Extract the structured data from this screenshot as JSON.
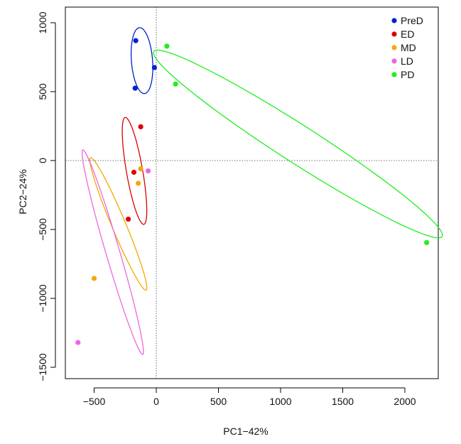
{
  "chart_data": {
    "type": "scatter",
    "xlabel": "PC1−42%",
    "ylabel": "PC2−24%",
    "xlim": [
      -700,
      2250
    ],
    "ylim": [
      -1600,
      1100
    ],
    "x_ticks": [
      -500,
      0,
      500,
      1000,
      1500,
      2000
    ],
    "y_ticks": [
      1000,
      500,
      0,
      -500,
      -1000,
      -1500
    ],
    "x_tick_labels": [
      "−500",
      "0",
      "500",
      "1000",
      "1500",
      "2000"
    ],
    "y_tick_labels": [
      "1000",
      "500",
      "0",
      "−500",
      "−1000",
      "−1500"
    ],
    "reference_lines": {
      "x": 0,
      "y": 0,
      "style": "dotted"
    },
    "legend_position": "top-right",
    "series": [
      {
        "name": "PreD",
        "color": "#0022cc",
        "points": [
          [
            -165,
            870
          ],
          [
            -170,
            525
          ],
          [
            -15,
            675
          ]
        ],
        "ellipse": {
          "center": [
            -115,
            725
          ],
          "rx": 240,
          "ry": 85,
          "angle_deg": -85
        }
      },
      {
        "name": "ED",
        "color": "#dd0000",
        "points": [
          [
            -125,
            245
          ],
          [
            -180,
            -85
          ],
          [
            -225,
            -425
          ]
        ],
        "ellipse": {
          "center": [
            -175,
            -75
          ],
          "rx": 395,
          "ry": 65,
          "angle_deg": -79
        }
      },
      {
        "name": "MD",
        "color": "#f2a900",
        "points": [
          [
            -125,
            -60
          ],
          [
            -145,
            -165
          ],
          [
            -500,
            -855
          ]
        ],
        "ellipse": {
          "center": [
            -305,
            -460
          ],
          "rx": 530,
          "ry": 55,
          "angle_deg": -65
        }
      },
      {
        "name": "LD",
        "color": "#ee66dd",
        "points": [
          [
            -65,
            -75
          ],
          [
            -630,
            -1320
          ]
        ],
        "ellipse": {
          "center": [
            -350,
            -665
          ],
          "rx": 780,
          "ry": 55,
          "angle_deg": -72
        }
      },
      {
        "name": "PD",
        "color": "#22ee22",
        "points": [
          [
            85,
            830
          ],
          [
            155,
            555
          ],
          [
            2175,
            -595
          ]
        ],
        "ellipse": {
          "center": [
            1140,
            120
          ],
          "rx": 1340,
          "ry": 140,
          "angle_deg": -30
        }
      }
    ]
  }
}
